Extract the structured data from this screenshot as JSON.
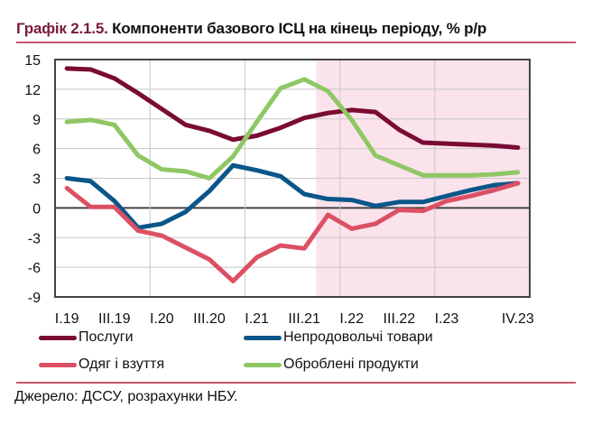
{
  "chart_data": {
    "type": "line",
    "title_prefix": "Графік 2.1.5.",
    "title": "Компоненти базового ІСЦ на кінець періоду, % р/р",
    "categories": [
      "I.19",
      "II.19",
      "III.19",
      "IV.19",
      "I.20",
      "II.20",
      "III.20",
      "IV.20",
      "I.21",
      "II.21",
      "III.21",
      "IV.21",
      "I.22",
      "II.22",
      "III.22",
      "IV.22",
      "I.23",
      "II.23",
      "III.23",
      "IV.23"
    ],
    "x_tick_labels": [
      "I.19",
      "III.19",
      "I.20",
      "III.20",
      "I.21",
      "III.21",
      "I.22",
      "III.22",
      "I.23",
      "IV.23"
    ],
    "ylim": [
      -9,
      15
    ],
    "y_ticks": [
      15,
      12,
      9,
      6,
      3,
      0,
      -3,
      -6,
      -9
    ],
    "grid": true,
    "shaded_region": {
      "from": "IV.21",
      "to": "IV.23",
      "color": "#fbe3ec"
    },
    "legend_position": "bottom",
    "series": [
      {
        "name": "Послуги",
        "color": "#7a0b35",
        "values": [
          14.1,
          14.0,
          13.1,
          11.6,
          10.0,
          8.4,
          7.8,
          6.9,
          7.3,
          8.1,
          9.1,
          9.6,
          9.9,
          9.7,
          7.9,
          6.6,
          6.5,
          6.4,
          6.3,
          6.1
        ]
      },
      {
        "name": "Непродовольчі товари",
        "color": "#0b5689",
        "values": [
          3.0,
          2.7,
          0.7,
          -2.0,
          -1.6,
          -0.4,
          1.7,
          4.3,
          3.8,
          3.2,
          1.4,
          0.9,
          0.8,
          0.2,
          0.6,
          0.6,
          1.2,
          1.8,
          2.3,
          2.5
        ]
      },
      {
        "name": "Одяг і взуття",
        "color": "#dc5064",
        "values": [
          2.0,
          0.1,
          0.1,
          -2.3,
          -2.8,
          -4.0,
          -5.2,
          -7.4,
          -5.0,
          -3.8,
          -4.1,
          -0.7,
          -2.1,
          -1.6,
          -0.2,
          -0.3,
          0.7,
          1.2,
          1.8,
          2.5
        ]
      },
      {
        "name": "Оброблені продукти",
        "color": "#8fc765",
        "values": [
          8.7,
          8.9,
          8.4,
          5.3,
          3.9,
          3.7,
          3.0,
          5.2,
          8.7,
          12.1,
          13.0,
          11.8,
          8.9,
          5.3,
          4.3,
          3.3,
          3.3,
          3.3,
          3.4,
          3.6
        ]
      }
    ]
  },
  "source": "Джерело: ДССУ, розрахунки НБУ."
}
